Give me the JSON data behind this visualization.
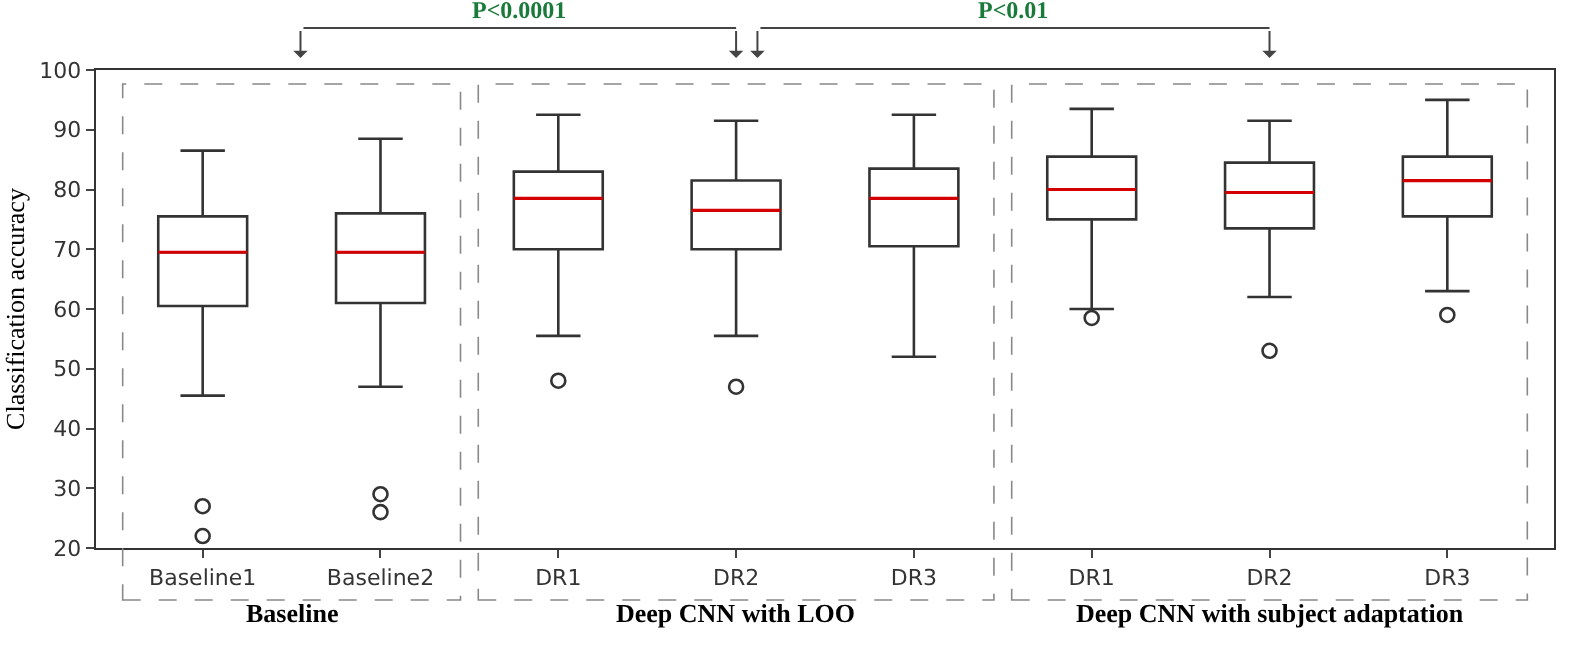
{
  "chart_data": {
    "type": "box",
    "categories": [
      "Baseline1",
      "Baseline2",
      "DR1",
      "DR2",
      "DR3",
      "DR1",
      "DR2",
      "DR3"
    ],
    "ylabel": "Classification accuracy",
    "ylim": [
      20,
      100
    ],
    "yticks": [
      20,
      30,
      40,
      50,
      60,
      70,
      80,
      90,
      100
    ],
    "series": [
      {
        "color": "#333333",
        "boxes": [
          {
            "low": 45.5,
            "q1": 60.5,
            "median": 69.5,
            "q3": 75.5,
            "high": 86.5,
            "outliers": [
              27,
              22
            ]
          },
          {
            "low": 47,
            "q1": 61,
            "median": 69.5,
            "q3": 76,
            "high": 88.5,
            "outliers": [
              29,
              26
            ]
          },
          {
            "low": 55.5,
            "q1": 70,
            "median": 78.5,
            "q3": 83,
            "high": 92.5,
            "outliers": [
              48
            ]
          },
          {
            "low": 55.5,
            "q1": 70,
            "median": 76.5,
            "q3": 81.5,
            "high": 91.5,
            "outliers": [
              47
            ]
          },
          {
            "low": 52,
            "q1": 70.5,
            "median": 78.5,
            "q3": 83.5,
            "high": 92.5
          },
          {
            "low": 60,
            "q1": 75,
            "median": 80,
            "q3": 85.5,
            "high": 93.5,
            "outliers": [
              58.5
            ]
          },
          {
            "low": 62,
            "q1": 73.5,
            "median": 79.5,
            "q3": 84.5,
            "high": 91.5,
            "outliers": [
              53
            ]
          },
          {
            "low": 63,
            "q1": 75.5,
            "median": 81.5,
            "q3": 85.5,
            "high": 95,
            "outliers": [
              59
            ]
          }
        ]
      }
    ],
    "annotations": [
      "Baseline",
      "Deep CNN with LOO",
      "Deep CNN with subject adaptation",
      "P<0.0001",
      "P<0.01"
    ]
  }
}
